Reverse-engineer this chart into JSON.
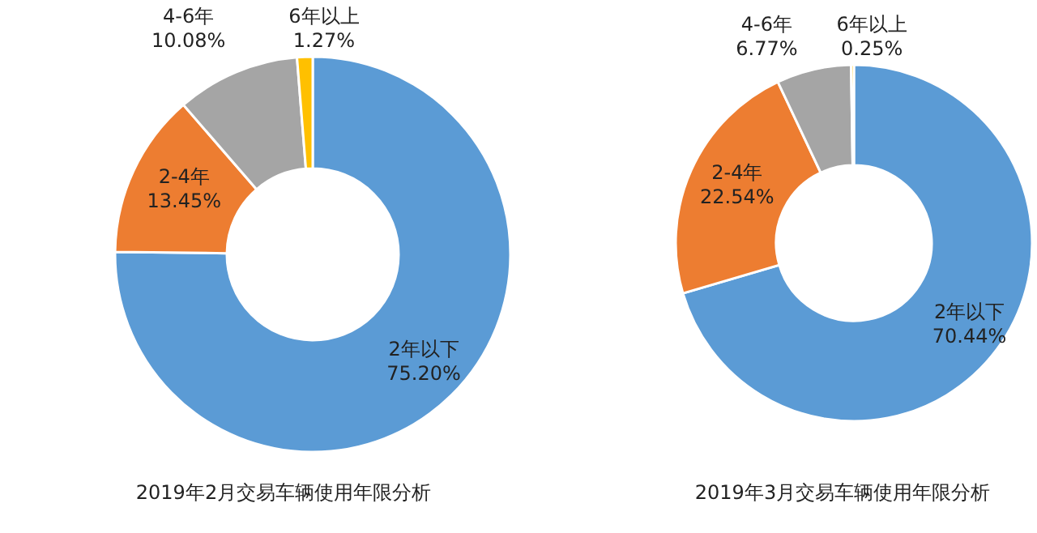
{
  "chart_data": [
    {
      "type": "donut",
      "title": "2019年2月交易车辆使用年限分析",
      "categories": [
        "2年以下",
        "2-4年",
        "4-6年",
        "6年以上"
      ],
      "values": [
        75.2,
        13.45,
        10.08,
        1.27
      ],
      "colors": [
        "#5b9bd5",
        "#ed7d31",
        "#a5a5a5",
        "#ffc000"
      ],
      "value_labels": [
        "75.20%",
        "13.45%",
        "10.08%",
        "1.27%"
      ]
    },
    {
      "type": "donut",
      "title": "2019年3月交易车辆使用年限分析",
      "categories": [
        "2年以下",
        "2-4年",
        "4-6年",
        "6年以上"
      ],
      "values": [
        70.44,
        22.54,
        6.77,
        0.25
      ],
      "colors": [
        "#5b9bd5",
        "#ed7d31",
        "#a5a5a5",
        "#ffc000"
      ],
      "value_labels": [
        "70.44%",
        "22.54%",
        "6.77%",
        "0.25%"
      ]
    }
  ]
}
